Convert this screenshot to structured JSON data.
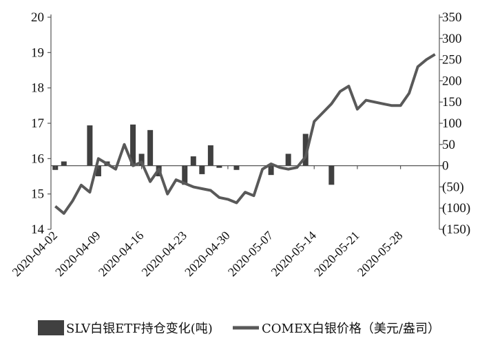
{
  "chart_data": {
    "type": "bar+line",
    "x_dates": [
      "2020-04-02",
      "2020-04-03",
      "2020-04-06",
      "2020-04-07",
      "2020-04-08",
      "2020-04-09",
      "2020-04-10",
      "2020-04-13",
      "2020-04-14",
      "2020-04-15",
      "2020-04-16",
      "2020-04-17",
      "2020-04-20",
      "2020-04-21",
      "2020-04-22",
      "2020-04-23",
      "2020-04-24",
      "2020-04-27",
      "2020-04-28",
      "2020-04-29",
      "2020-04-30",
      "2020-05-01",
      "2020-05-04",
      "2020-05-05",
      "2020-05-06",
      "2020-05-07",
      "2020-05-08",
      "2020-05-11",
      "2020-05-12",
      "2020-05-13",
      "2020-05-14",
      "2020-05-15",
      "2020-05-18",
      "2020-05-19",
      "2020-05-20",
      "2020-05-21",
      "2020-05-22",
      "2020-05-25",
      "2020-05-26",
      "2020-05-27",
      "2020-05-28",
      "2020-05-29",
      "2020-06-01",
      "2020-06-02",
      "2020-06-03"
    ],
    "x_tick_labels": [
      "2020-04-02",
      "2020-04-09",
      "2020-04-16",
      "2020-04-23",
      "2020-04-30",
      "2020-05-07",
      "2020-05-14",
      "2020-05-21",
      "2020-05-28"
    ],
    "left_axis": {
      "ylim": [
        14,
        20
      ],
      "ticks": [
        "14",
        "15",
        "16",
        "17",
        "18",
        "19",
        "20"
      ]
    },
    "right_axis": {
      "ylim": [
        -150,
        350
      ],
      "ticks": [
        "(150)",
        "(100)",
        "(50)",
        "0",
        "50",
        "100",
        "150",
        "200",
        "250",
        "300",
        "350"
      ]
    },
    "series": [
      {
        "name": "SLV白银ETF持仓变化(吨)",
        "kind": "bar",
        "axis": "right",
        "color": "#404040",
        "values": [
          -10,
          10,
          0,
          0,
          95,
          -25,
          10,
          0,
          0,
          97,
          28,
          84,
          -25,
          0,
          0,
          -45,
          22,
          -20,
          48,
          -5,
          0,
          -10,
          0,
          0,
          0,
          -22,
          0,
          28,
          0,
          75,
          0,
          0,
          -45,
          0,
          0,
          0,
          0,
          0,
          0,
          0,
          0,
          0,
          0,
          0,
          0
        ]
      },
      {
        "name": "COMEX白银价格（美元/盎司）",
        "kind": "line",
        "axis": "left",
        "color": "#595959",
        "values": [
          14.65,
          14.45,
          14.8,
          15.25,
          15.05,
          16.0,
          15.85,
          15.7,
          16.4,
          15.8,
          15.9,
          15.35,
          15.7,
          15.0,
          15.4,
          15.3,
          15.2,
          15.15,
          15.1,
          14.9,
          14.85,
          14.75,
          15.05,
          14.95,
          15.7,
          15.85,
          15.75,
          15.7,
          15.75,
          16.05,
          17.05,
          17.3,
          17.55,
          17.9,
          18.05,
          17.4,
          17.65,
          17.6,
          17.55,
          17.5,
          17.5,
          17.85,
          18.6,
          18.8,
          18.95
        ]
      }
    ]
  }
}
